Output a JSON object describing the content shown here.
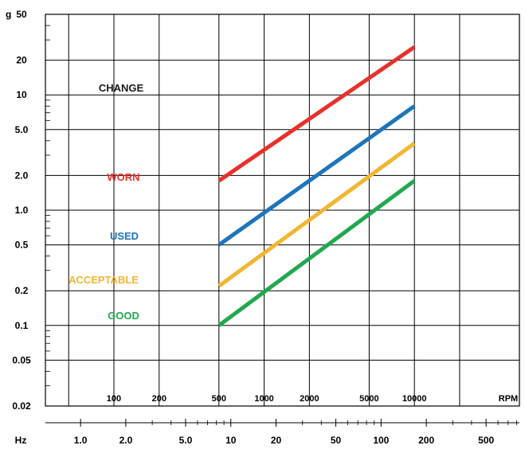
{
  "chart_data": {
    "type": "line",
    "y_unit_label": "g",
    "y_scale": "log",
    "y_ticks": [
      "0.02",
      "0.05",
      "0.1",
      "0.2",
      "0.5",
      "1.0",
      "2.0",
      "5.0",
      "10",
      "20",
      "50"
    ],
    "y_tick_values": [
      0.02,
      0.05,
      0.1,
      0.2,
      0.5,
      1.0,
      2.0,
      5.0,
      10,
      20,
      50
    ],
    "rpm_label": "RPM",
    "rpm_scale": "log",
    "rpm_ticks": [
      "100",
      "200",
      "500",
      "1000",
      "2000",
      "5000",
      "10000"
    ],
    "rpm_tick_values": [
      100,
      200,
      500,
      1000,
      2000,
      5000,
      10000
    ],
    "hz_label": "Hz",
    "hz_ticks": [
      "1.0",
      "2.0",
      "5.0",
      "10",
      "20",
      "50",
      "100",
      "200",
      "500"
    ],
    "hz_tick_values": [
      1,
      2,
      5,
      10,
      20,
      50,
      100,
      200,
      500
    ],
    "rpm_range": [
      35,
      50000
    ],
    "y_range": [
      0.02,
      50
    ],
    "grid": true,
    "zone_labels": [
      {
        "text": "CHANGE",
        "color": "#1a1a1a"
      },
      {
        "text": "WORN",
        "color": "#e8312c"
      },
      {
        "text": "USED",
        "color": "#1d75bc"
      },
      {
        "text": "ACCEPTABLE",
        "color": "#f2b632"
      },
      {
        "text": "GOOD",
        "color": "#23a850"
      }
    ],
    "series": [
      {
        "color": "#e8312c",
        "x": [
          500,
          10000
        ],
        "y": [
          1.8,
          26
        ]
      },
      {
        "color": "#1d75bc",
        "x": [
          500,
          10000
        ],
        "y": [
          0.5,
          8.0
        ]
      },
      {
        "color": "#f2b632",
        "x": [
          500,
          10000
        ],
        "y": [
          0.22,
          3.8
        ]
      },
      {
        "color": "#23a850",
        "x": [
          500,
          10000
        ],
        "y": [
          0.1,
          1.8
        ]
      }
    ]
  }
}
